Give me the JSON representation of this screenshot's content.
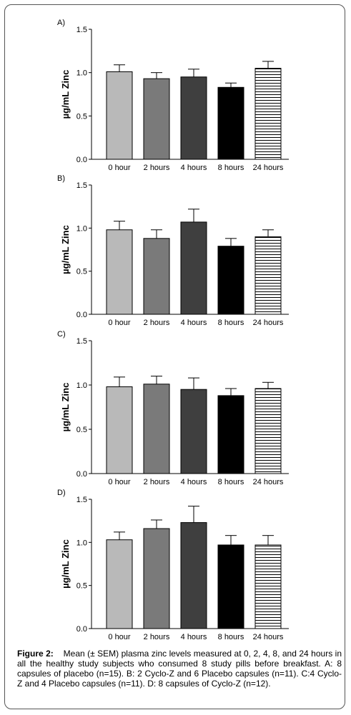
{
  "chart_data": [
    {
      "type": "bar",
      "panel_label": "A)",
      "ylabel": "µg/mL Zinc",
      "ylim": [
        0,
        1.5
      ],
      "yticks": [
        "0.0",
        "0.5",
        "1.0",
        "1.5"
      ],
      "categories": [
        "0 hour",
        "2 hours",
        "4 hours",
        "8 hours",
        "24 hours"
      ],
      "values": [
        1.01,
        0.93,
        0.95,
        0.83,
        1.05
      ],
      "errors": [
        0.08,
        0.07,
        0.09,
        0.05,
        0.08
      ]
    },
    {
      "type": "bar",
      "panel_label": "B)",
      "ylabel": "µg/mL Zinc",
      "ylim": [
        0,
        1.5
      ],
      "yticks": [
        "0.0",
        "0.5",
        "1.0",
        "1.5"
      ],
      "categories": [
        "0 hour",
        "2 hours",
        "4 hours",
        "8 hours",
        "24 hours"
      ],
      "values": [
        0.98,
        0.88,
        1.07,
        0.79,
        0.9
      ],
      "errors": [
        0.1,
        0.1,
        0.15,
        0.09,
        0.08
      ]
    },
    {
      "type": "bar",
      "panel_label": "C)",
      "ylabel": "µg/mL Zinc",
      "ylim": [
        0,
        1.5
      ],
      "yticks": [
        "0.0",
        "0.5",
        "1.0",
        "1.5"
      ],
      "categories": [
        "0 hour",
        "2 hours",
        "4 hours",
        "8 hours",
        "24 hours"
      ],
      "values": [
        0.98,
        1.01,
        0.95,
        0.88,
        0.96
      ],
      "errors": [
        0.11,
        0.09,
        0.13,
        0.08,
        0.07
      ]
    },
    {
      "type": "bar",
      "panel_label": "D)",
      "ylabel": "µg/mL Zinc",
      "ylim": [
        0,
        1.5
      ],
      "yticks": [
        "0.0",
        "0.5",
        "1.0",
        "1.5"
      ],
      "categories": [
        "0 hour",
        "2 hours",
        "4 hours",
        "8 hours",
        "24 hours"
      ],
      "values": [
        1.03,
        1.16,
        1.23,
        0.97,
        0.97
      ],
      "errors": [
        0.09,
        0.1,
        0.19,
        0.11,
        0.11
      ]
    }
  ],
  "bar_styles": [
    "light-gray",
    "mid-gray",
    "dark-gray",
    "black",
    "horizontal-stripes"
  ],
  "colors": {
    "light-gray": "#b9b9b9",
    "mid-gray": "#7a7a7a",
    "dark-gray": "#3f3f3f",
    "black": "#000000",
    "stripes": "#000000"
  },
  "caption": {
    "label": "Figure 2:",
    "text": "Mean (± SEM) plasma zinc levels measured at 0, 2, 4, 8, and 24 hours in all the healthy study subjects who consumed 8 study pills before breakfast. A: 8 capsules of placebo (n=15). B: 2 Cyclo-Z and 6 Placebo capsules (n=11). C:4 Cyclo-Z and 4 Placebo capsules (n=11). D: 8 capsules of Cyclo-Z (n=12)."
  }
}
